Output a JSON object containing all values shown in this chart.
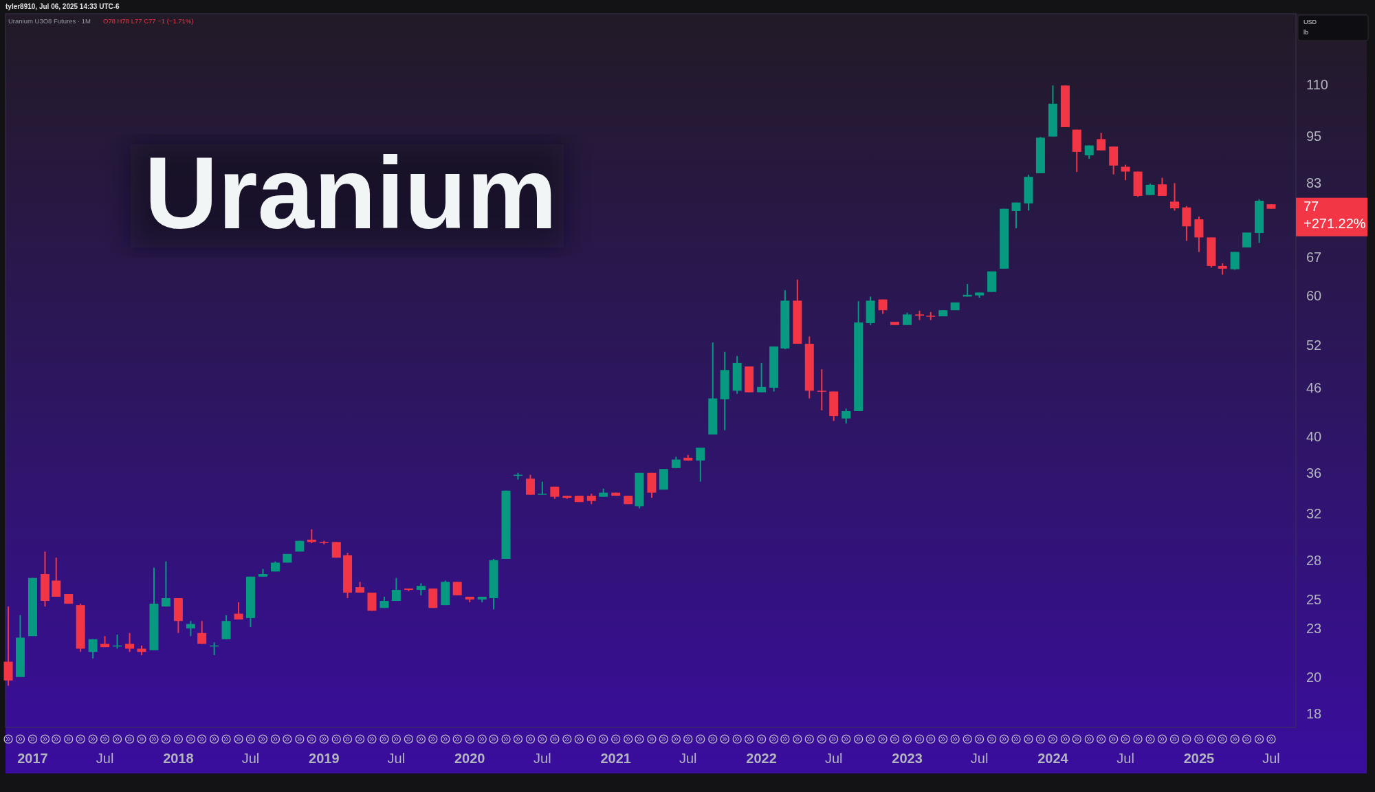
{
  "chart_data": {
    "type": "candlestick",
    "title": "Uranium",
    "subtitle": "Uranium U3O8 Futures · 1M",
    "ylabel": "USD\nlb",
    "annotations": [
      "tyler8910, Jul 06, 2025 14:33 UTC-6",
      "O78 H78 L77 C77 −1 (−1.71%)",
      "77",
      "+271.22%"
    ],
    "x": [
      "2016-11",
      "2016-12",
      "2017-01",
      "2017-02",
      "2017-03",
      "2017-04",
      "2017-05",
      "2017-06",
      "2017-07",
      "2017-08",
      "2017-09",
      "2017-10",
      "2017-11",
      "2017-12",
      "2018-01",
      "2018-02",
      "2018-03",
      "2018-04",
      "2018-05",
      "2018-06",
      "2018-07",
      "2018-08",
      "2018-09",
      "2018-10",
      "2018-11",
      "2018-12",
      "2019-01",
      "2019-02",
      "2019-03",
      "2019-04",
      "2019-05",
      "2019-06",
      "2019-07",
      "2019-08",
      "2019-09",
      "2019-10",
      "2019-11",
      "2019-12",
      "2020-01",
      "2020-02",
      "2020-03",
      "2020-04",
      "2020-05",
      "2020-06",
      "2020-07",
      "2020-08",
      "2020-09",
      "2020-10",
      "2020-11",
      "2020-12",
      "2021-01",
      "2021-02",
      "2021-03",
      "2021-04",
      "2021-05",
      "2021-06",
      "2021-07",
      "2021-08",
      "2021-09",
      "2021-10",
      "2021-11",
      "2021-12",
      "2022-01",
      "2022-02",
      "2022-03",
      "2022-04",
      "2022-05",
      "2022-06",
      "2022-07",
      "2022-08",
      "2022-09",
      "2022-10",
      "2022-11",
      "2022-12",
      "2023-01",
      "2023-02",
      "2023-03",
      "2023-04",
      "2023-05",
      "2023-06",
      "2023-07",
      "2023-08",
      "2023-09",
      "2023-10",
      "2023-11",
      "2023-12",
      "2024-01",
      "2024-02",
      "2024-03",
      "2024-04",
      "2024-05",
      "2024-06",
      "2024-07",
      "2024-08",
      "2024-09",
      "2024-10",
      "2024-11",
      "2024-12",
      "2025-01",
      "2025-02",
      "2025-03",
      "2025-04",
      "2025-05",
      "2025-06",
      "2025-07"
    ],
    "ohlc": [
      [
        20.9,
        24.5,
        19.5,
        19.8
      ],
      [
        20.0,
        23.9,
        20.0,
        22.4
      ],
      [
        22.5,
        26.6,
        22.5,
        26.6
      ],
      [
        26.9,
        28.7,
        24.5,
        24.9
      ],
      [
        26.4,
        28.2,
        25.2,
        25.2
      ],
      [
        25.4,
        25.4,
        24.7,
        24.7
      ],
      [
        24.6,
        24.7,
        21.5,
        21.7
      ],
      [
        21.5,
        22.3,
        21.1,
        22.3
      ],
      [
        22.0,
        22.5,
        21.8,
        21.8
      ],
      [
        21.9,
        22.6,
        21.7,
        21.9
      ],
      [
        22.0,
        22.7,
        21.5,
        21.7
      ],
      [
        21.7,
        21.9,
        21.3,
        21.5
      ],
      [
        21.6,
        27.4,
        21.6,
        24.7
      ],
      [
        24.5,
        27.9,
        24.5,
        25.1
      ],
      [
        25.1,
        25.1,
        22.7,
        23.5
      ],
      [
        23.0,
        23.5,
        22.5,
        23.3
      ],
      [
        22.7,
        23.5,
        22.0,
        22.0
      ],
      [
        21.9,
        22.1,
        21.3,
        21.9
      ],
      [
        22.3,
        23.9,
        22.3,
        23.5
      ],
      [
        24.0,
        24.8,
        23.6,
        23.6
      ],
      [
        23.7,
        26.7,
        23.1,
        26.7
      ],
      [
        26.7,
        27.3,
        26.7,
        26.9
      ],
      [
        27.1,
        27.9,
        27.1,
        27.8
      ],
      [
        27.8,
        28.5,
        27.8,
        28.5
      ],
      [
        28.7,
        29.6,
        28.7,
        29.6
      ],
      [
        29.7,
        30.6,
        29.4,
        29.5
      ],
      [
        29.5,
        29.6,
        29.3,
        29.5
      ],
      [
        29.5,
        29.5,
        28.2,
        28.2
      ],
      [
        28.4,
        28.6,
        25.1,
        25.5
      ],
      [
        25.9,
        26.3,
        25.5,
        25.5
      ],
      [
        25.5,
        25.5,
        24.2,
        24.2
      ],
      [
        24.4,
        25.2,
        24.4,
        24.9
      ],
      [
        24.9,
        26.6,
        24.9,
        25.7
      ],
      [
        25.8,
        25.8,
        25.6,
        25.7
      ],
      [
        25.7,
        26.2,
        25.3,
        26.0
      ],
      [
        25.8,
        25.8,
        24.4,
        24.4
      ],
      [
        24.6,
        26.4,
        24.6,
        26.3
      ],
      [
        26.3,
        26.3,
        25.3,
        25.3
      ],
      [
        25.2,
        25.2,
        24.8,
        25.0
      ],
      [
        25.0,
        25.2,
        24.8,
        25.2
      ],
      [
        25.1,
        28.1,
        24.3,
        28.0
      ],
      [
        28.1,
        34.2,
        28.1,
        34.2
      ],
      [
        35.8,
        36.0,
        35.3,
        35.8
      ],
      [
        35.4,
        35.8,
        33.8,
        33.8
      ],
      [
        33.8,
        35.1,
        33.8,
        33.9
      ],
      [
        34.6,
        34.6,
        33.4,
        33.6
      ],
      [
        33.7,
        33.7,
        33.4,
        33.5
      ],
      [
        33.7,
        33.7,
        33.1,
        33.1
      ],
      [
        33.7,
        33.9,
        32.9,
        33.2
      ],
      [
        33.6,
        34.4,
        33.6,
        34.0
      ],
      [
        34.0,
        34.0,
        33.7,
        33.7
      ],
      [
        33.7,
        33.7,
        32.9,
        32.9
      ],
      [
        32.7,
        36.0,
        32.5,
        36.0
      ],
      [
        36.0,
        36.0,
        33.5,
        34.0
      ],
      [
        34.3,
        36.4,
        34.3,
        36.4
      ],
      [
        36.5,
        37.7,
        36.5,
        37.4
      ],
      [
        37.6,
        37.9,
        37.3,
        37.3
      ],
      [
        37.3,
        38.7,
        35.1,
        38.7
      ],
      [
        40.2,
        52.4,
        40.2,
        44.6
      ],
      [
        44.5,
        51.0,
        40.7,
        48.4
      ],
      [
        45.6,
        50.4,
        45.2,
        49.4
      ],
      [
        48.9,
        48.9,
        45.4,
        45.4
      ],
      [
        45.4,
        49.4,
        45.4,
        46.1
      ],
      [
        46.0,
        51.8,
        45.5,
        51.8
      ],
      [
        51.5,
        60.9,
        51.4,
        59.1
      ],
      [
        59.1,
        62.8,
        52.2,
        52.2
      ],
      [
        52.2,
        53.3,
        44.6,
        45.6
      ],
      [
        45.6,
        48.5,
        43.1,
        45.6
      ],
      [
        45.5,
        45.5,
        41.8,
        42.4
      ],
      [
        42.1,
        43.3,
        41.5,
        43.0
      ],
      [
        43.0,
        59.0,
        43.0,
        55.5
      ],
      [
        55.4,
        59.8,
        55.1,
        59.1
      ],
      [
        59.3,
        59.3,
        56.9,
        57.5
      ],
      [
        55.6,
        55.6,
        55.1,
        55.1
      ],
      [
        55.1,
        57.1,
        55.1,
        56.8
      ],
      [
        56.8,
        57.4,
        55.9,
        56.6
      ],
      [
        56.6,
        57.2,
        55.9,
        56.5
      ],
      [
        56.5,
        57.5,
        56.5,
        57.5
      ],
      [
        57.5,
        58.8,
        57.5,
        58.8
      ],
      [
        59.8,
        62.0,
        59.8,
        60.1
      ],
      [
        60.0,
        60.5,
        59.6,
        60.5
      ],
      [
        60.6,
        64.3,
        60.6,
        64.3
      ],
      [
        64.8,
        77.0,
        64.8,
        77.0
      ],
      [
        76.5,
        78.4,
        72.8,
        78.4
      ],
      [
        78.2,
        84.9,
        76.6,
        84.4
      ],
      [
        85.3,
        94.7,
        85.3,
        94.5
      ],
      [
        94.8,
        109.8,
        94.8,
        104.2
      ],
      [
        109.8,
        109.8,
        97.4,
        97.4
      ],
      [
        96.7,
        96.7,
        85.6,
        90.7
      ],
      [
        89.8,
        92.4,
        88.9,
        92.4
      ],
      [
        94.1,
        95.8,
        91.1,
        91.1
      ],
      [
        92.1,
        92.1,
        85.0,
        87.2
      ],
      [
        86.9,
        87.4,
        83.6,
        85.7
      ],
      [
        85.7,
        85.7,
        79.7,
        79.9
      ],
      [
        80.1,
        82.8,
        80.1,
        82.5
      ],
      [
        82.6,
        84.2,
        79.9,
        79.9
      ],
      [
        78.6,
        82.9,
        76.6,
        77.1
      ],
      [
        77.3,
        77.6,
        70.2,
        73.2
      ],
      [
        74.7,
        75.3,
        68.0,
        70.9
      ],
      [
        70.9,
        70.9,
        65.0,
        65.3
      ],
      [
        65.3,
        65.8,
        63.7,
        64.8
      ],
      [
        64.7,
        68.0,
        64.6,
        68.0
      ],
      [
        68.9,
        71.9,
        68.9,
        71.9
      ],
      [
        71.8,
        79.1,
        69.8,
        78.8
      ],
      [
        78,
        78,
        77,
        77
      ]
    ],
    "colors": [
      "#f23645",
      "#089981",
      "#089981",
      "#f23645",
      "#f23645",
      "#f23645",
      "#f23645",
      "#089981",
      "#f23645",
      "#089981",
      "#f23645",
      "#f23645",
      "#089981",
      "#089981",
      "#f23645",
      "#089981",
      "#f23645",
      "#089981",
      "#089981",
      "#f23645",
      "#089981",
      "#089981",
      "#089981",
      "#089981",
      "#089981",
      "#f23645",
      "#f23645",
      "#f23645",
      "#f23645",
      "#f23645",
      "#f23645",
      "#089981",
      "#089981",
      "#f23645",
      "#089981",
      "#f23645",
      "#089981",
      "#f23645",
      "#f23645",
      "#089981",
      "#089981",
      "#089981",
      "#089981",
      "#f23645",
      "#089981",
      "#f23645",
      "#f23645",
      "#f23645",
      "#f23645",
      "#089981",
      "#f23645",
      "#f23645",
      "#089981",
      "#f23645",
      "#089981",
      "#089981",
      "#f23645",
      "#089981",
      "#089981",
      "#089981",
      "#089981",
      "#f23645",
      "#089981",
      "#089981",
      "#089981",
      "#f23645",
      "#f23645",
      "#f23645",
      "#f23645",
      "#089981",
      "#089981",
      "#089981",
      "#f23645",
      "#f23645",
      "#089981",
      "#f23645",
      "#f23645",
      "#089981",
      "#089981",
      "#089981",
      "#089981",
      "#089981",
      "#089981",
      "#089981",
      "#089981",
      "#089981",
      "#089981",
      "#f23645",
      "#f23645",
      "#089981",
      "#f23645",
      "#f23645",
      "#f23645",
      "#f23645",
      "#089981",
      "#f23645",
      "#f23645",
      "#f23645",
      "#f23645",
      "#f23645",
      "#f23645",
      "#089981",
      "#089981",
      "#089981",
      "#f23645"
    ],
    "xlim": [
      "2016-10-25",
      "2025-09-01"
    ],
    "xticks": [
      {
        "value": "2017-01",
        "label": "2017"
      },
      {
        "value": "2017-07",
        "label": "Jul"
      },
      {
        "value": "2018-01",
        "label": "2018"
      },
      {
        "value": "2018-07",
        "label": "Jul"
      },
      {
        "value": "2019-01",
        "label": "2019"
      },
      {
        "value": "2019-07",
        "label": "Jul"
      },
      {
        "value": "2020-01",
        "label": "2020"
      },
      {
        "value": "2020-07",
        "label": "Jul"
      },
      {
        "value": "2021-01",
        "label": "2021"
      },
      {
        "value": "2021-07",
        "label": "Jul"
      },
      {
        "value": "2022-01",
        "label": "2022"
      },
      {
        "value": "2022-07",
        "label": "Jul"
      },
      {
        "value": "2023-01",
        "label": "2023"
      },
      {
        "value": "2023-07",
        "label": "Jul"
      },
      {
        "value": "2024-01",
        "label": "2024"
      },
      {
        "value": "2024-07",
        "label": "Jul"
      },
      {
        "value": "2025-01",
        "label": "2025"
      },
      {
        "value": "2025-07",
        "label": "Jul"
      }
    ],
    "ylim": [
      17.3,
      135
    ],
    "yticks": [
      18,
      20,
      23,
      25,
      28,
      32,
      36,
      40,
      46,
      52,
      60,
      67,
      83,
      95,
      110
    ],
    "log": true
  }
}
